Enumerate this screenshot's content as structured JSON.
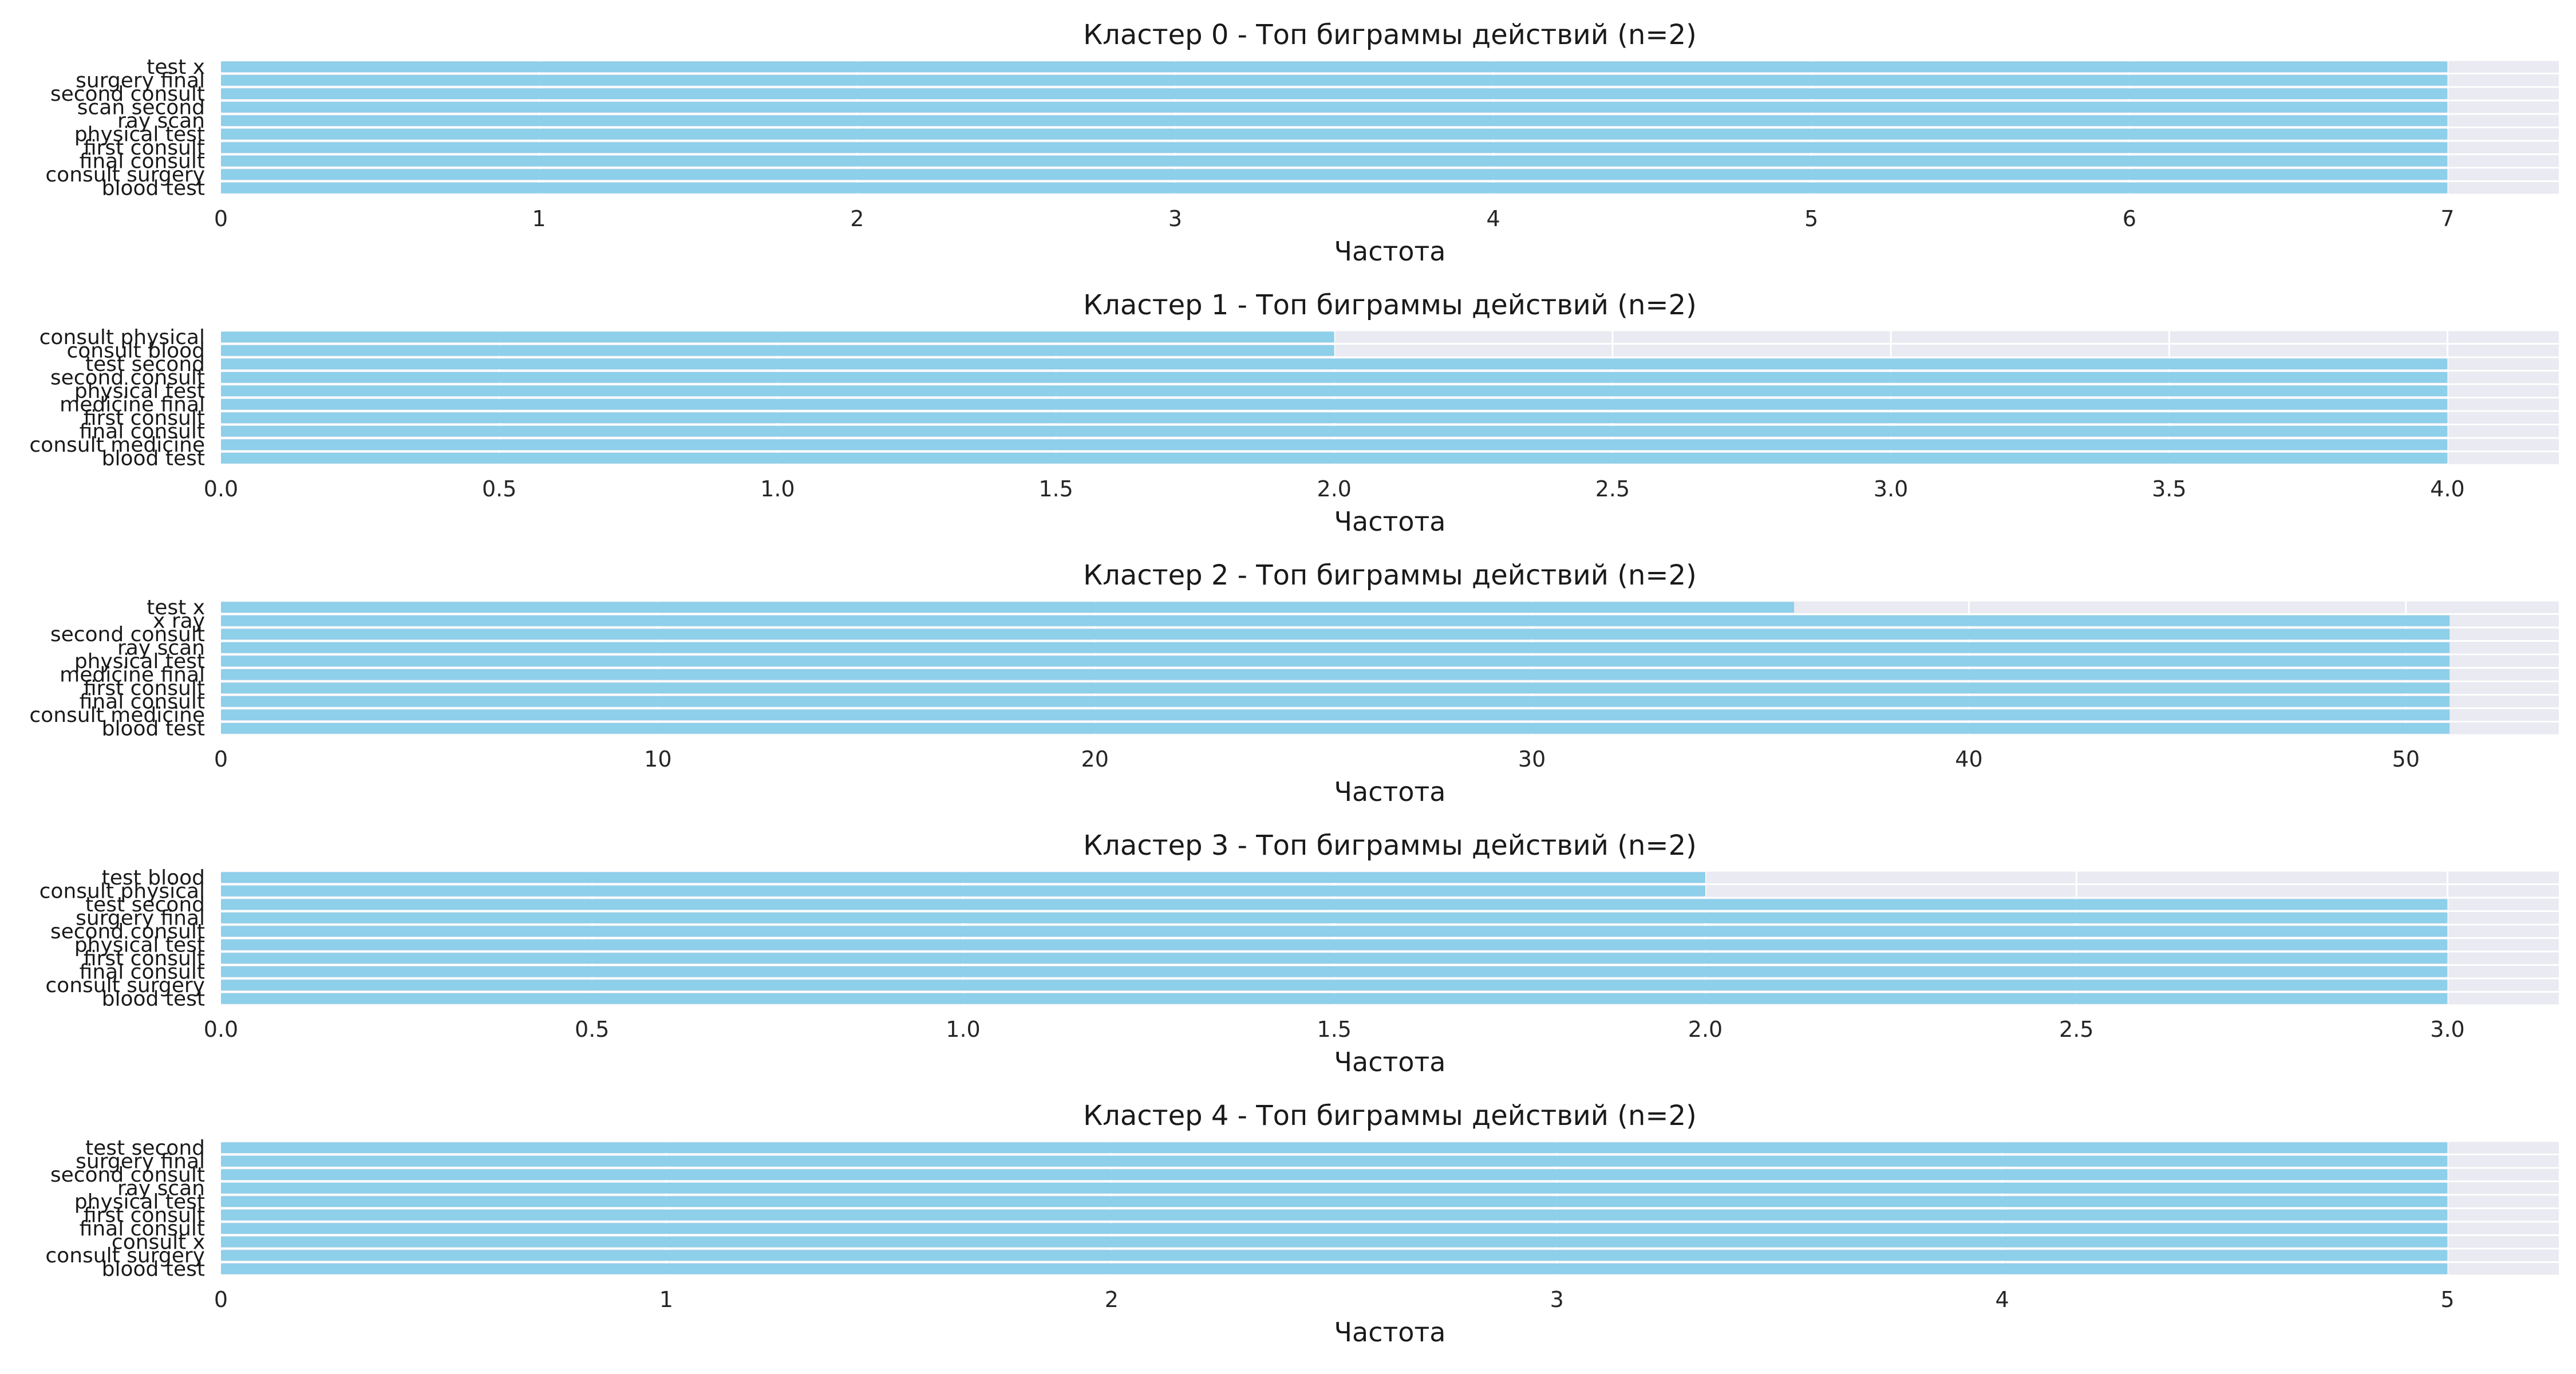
{
  "figure": {
    "background": "#ffffff",
    "plot_background": "#eaeaf2",
    "bar_color": "#8ecfea"
  },
  "chart_data": [
    {
      "type": "bar",
      "orientation": "horizontal",
      "title": "Кластер 0 - Топ биграммы действий (n=2)",
      "xlabel": "Частота",
      "ylabel": "",
      "xlim": [
        0,
        7.35
      ],
      "xticks": [
        "0",
        "1",
        "2",
        "3",
        "4",
        "5",
        "6",
        "7"
      ],
      "xtick_values": [
        0,
        1,
        2,
        3,
        4,
        5,
        6,
        7
      ],
      "grid": true,
      "categories": [
        "blood test",
        "consult surgery",
        "final consult",
        "first consult",
        "physical test",
        "ray scan",
        "scan second",
        "second consult",
        "surgery final",
        "test x"
      ],
      "values": [
        7,
        7,
        7,
        7,
        7,
        7,
        7,
        7,
        7,
        7
      ]
    },
    {
      "type": "bar",
      "orientation": "horizontal",
      "title": "Кластер 1 - Топ биграммы действий (n=2)",
      "xlabel": "Частота",
      "ylabel": "",
      "xlim": [
        0,
        4.2
      ],
      "xticks": [
        "0.0",
        "0.5",
        "1.0",
        "1.5",
        "2.0",
        "2.5",
        "3.0",
        "3.5",
        "4.0"
      ],
      "xtick_values": [
        0,
        0.5,
        1,
        1.5,
        2,
        2.5,
        3,
        3.5,
        4
      ],
      "grid": true,
      "categories": [
        "blood test",
        "consult medicine",
        "final consult",
        "first consult",
        "medicine final",
        "physical test",
        "second consult",
        "test second",
        "consult blood",
        "consult physical"
      ],
      "values": [
        4,
        4,
        4,
        4,
        4,
        4,
        4,
        4,
        2,
        2
      ]
    },
    {
      "type": "bar",
      "orientation": "horizontal",
      "title": "Кластер 2 - Топ биграммы действий (n=2)",
      "xlabel": "Частота",
      "ylabel": "",
      "xlim": [
        0,
        53.5
      ],
      "xticks": [
        "0",
        "10",
        "20",
        "30",
        "40",
        "50"
      ],
      "xtick_values": [
        0,
        10,
        20,
        30,
        40,
        50
      ],
      "grid": true,
      "categories": [
        "blood test",
        "consult medicine",
        "final consult",
        "first consult",
        "medicine final",
        "physical test",
        "ray scan",
        "second consult",
        "x ray",
        "test x"
      ],
      "values": [
        51,
        51,
        51,
        51,
        51,
        51,
        51,
        51,
        51,
        36
      ]
    },
    {
      "type": "bar",
      "orientation": "horizontal",
      "title": "Кластер 3 - Топ биграммы действий (n=2)",
      "xlabel": "Частота",
      "ylabel": "",
      "xlim": [
        0,
        3.15
      ],
      "xticks": [
        "0.0",
        "0.5",
        "1.0",
        "1.5",
        "2.0",
        "2.5",
        "3.0"
      ],
      "xtick_values": [
        0,
        0.5,
        1,
        1.5,
        2,
        2.5,
        3
      ],
      "grid": true,
      "categories": [
        "blood test",
        "consult surgery",
        "final consult",
        "first consult",
        "physical test",
        "second consult",
        "surgery final",
        "test second",
        "consult physical",
        "test blood"
      ],
      "values": [
        3,
        3,
        3,
        3,
        3,
        3,
        3,
        3,
        2,
        2
      ]
    },
    {
      "type": "bar",
      "orientation": "horizontal",
      "title": "Кластер 4 - Топ биграммы действий (n=2)",
      "xlabel": "Частота",
      "ylabel": "",
      "xlim": [
        0,
        5.25
      ],
      "xticks": [
        "0",
        "1",
        "2",
        "3",
        "4",
        "5"
      ],
      "xtick_values": [
        0,
        1,
        2,
        3,
        4,
        5
      ],
      "grid": true,
      "categories": [
        "blood test",
        "consult surgery",
        "consult x",
        "final consult",
        "first consult",
        "physical test",
        "ray scan",
        "second consult",
        "surgery final",
        "test second"
      ],
      "values": [
        5,
        5,
        5,
        5,
        5,
        5,
        5,
        5,
        5,
        5
      ]
    }
  ]
}
